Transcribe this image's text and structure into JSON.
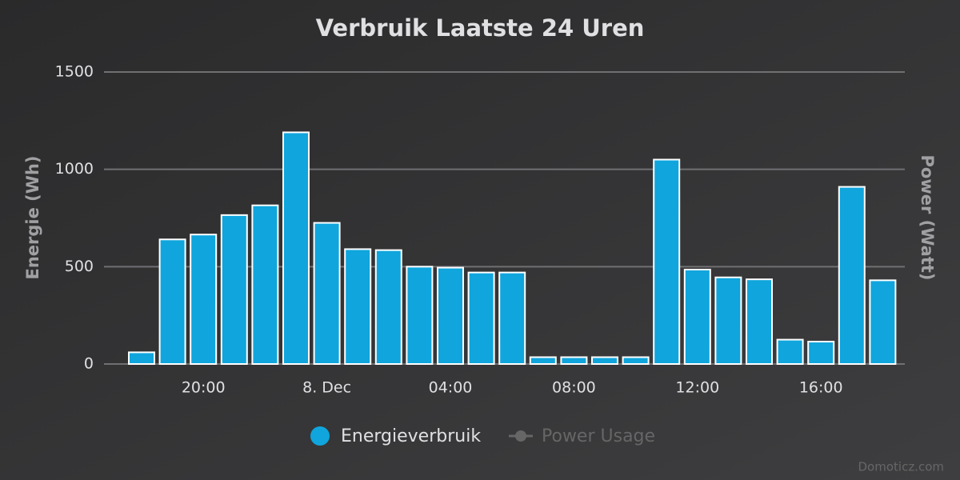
{
  "chart_data": {
    "type": "bar",
    "title": "Verbruik Laatste 24 Uren",
    "categories": [
      null,
      null,
      "20:00",
      null,
      null,
      null,
      "8. Dec",
      null,
      null,
      null,
      "04:00",
      null,
      null,
      null,
      "08:00",
      null,
      null,
      null,
      "12:00",
      null,
      null,
      null,
      "16:00",
      null,
      null
    ],
    "series": [
      {
        "name": "Energieverbruik",
        "color": "#10a5dc",
        "values": [
          60,
          640,
          665,
          765,
          815,
          1190,
          725,
          590,
          585,
          500,
          495,
          470,
          470,
          35,
          35,
          35,
          35,
          1050,
          485,
          445,
          435,
          125,
          115,
          910,
          430
        ]
      },
      {
        "name": "Power Usage",
        "color": "#666666",
        "axis": "y2",
        "visible": false,
        "values": [
          null,
          null,
          null,
          null,
          null,
          null,
          null,
          null,
          null,
          null,
          null,
          null,
          null,
          null,
          null,
          null,
          null,
          null,
          null,
          null,
          null,
          null,
          null,
          null,
          null
        ]
      }
    ],
    "y_label": "Energie (Wh)",
    "y2_label": "Power (Watt)",
    "ylim": [
      0,
      1500
    ],
    "yticks": [
      0,
      500,
      1000,
      1500
    ],
    "grid": true,
    "legend": "bottom",
    "credits": "Domoticz.com"
  }
}
